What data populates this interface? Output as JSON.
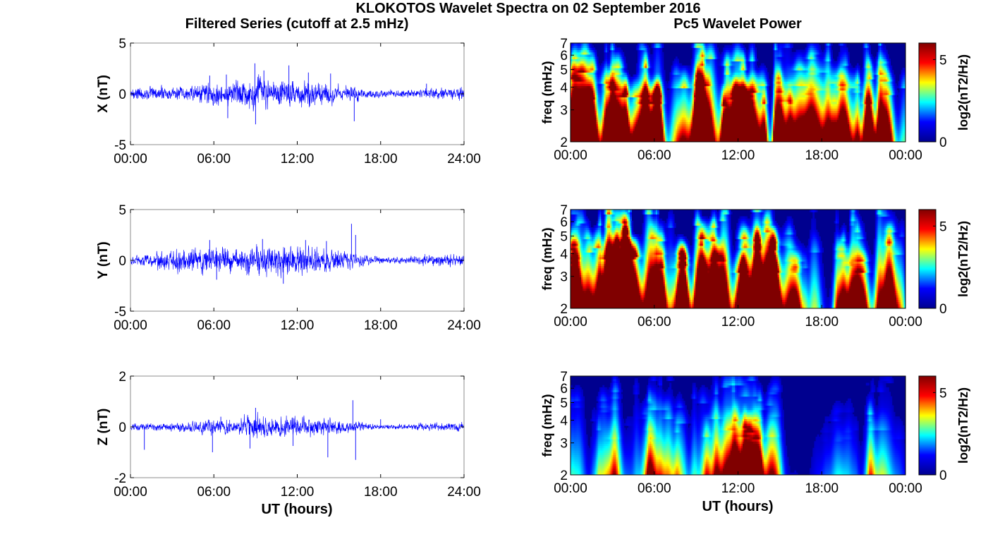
{
  "figure": {
    "title": "KLOKOTOS Wavelet Spectra on 02 September 2016",
    "left_title": "Filtered Series (cutoff at 2.5 mHz)",
    "right_title": "Pc5 Wavelet Power",
    "xlabel": "UT (hours)"
  },
  "colors": {
    "trace": "#0000ff",
    "colormap": [
      "#00008f",
      "#0000ff",
      "#00ffff",
      "#ffff00",
      "#ff0000",
      "#800000"
    ]
  },
  "chart_data": [
    {
      "type": "line",
      "component": "X",
      "ylabel": "X (nT)",
      "xlim": [
        0,
        24
      ],
      "ylim": [
        -5,
        5
      ],
      "xticks": [
        "00:00",
        "06:00",
        "12:00",
        "18:00",
        "24:00"
      ],
      "yticks": [
        "5",
        "0",
        "-5"
      ],
      "baseline_amplitude_nT": 0.45,
      "activity_envelope": [
        [
          0,
          0.6
        ],
        [
          2,
          0.7
        ],
        [
          4,
          0.7
        ],
        [
          6,
          1.1
        ],
        [
          7,
          1.0
        ],
        [
          8,
          1.4
        ],
        [
          9,
          1.8
        ],
        [
          10,
          1.5
        ],
        [
          11,
          1.5
        ],
        [
          12,
          1.5
        ],
        [
          13,
          1.3
        ],
        [
          14,
          1.1
        ],
        [
          15,
          0.9
        ],
        [
          16,
          0.8
        ],
        [
          17,
          0.5
        ],
        [
          18,
          0.4
        ],
        [
          19,
          0.35
        ],
        [
          20,
          0.4
        ],
        [
          21,
          0.5
        ],
        [
          22,
          0.5
        ],
        [
          23,
          0.55
        ],
        [
          24,
          0.7
        ]
      ],
      "spikes": [
        [
          5.7,
          1.8
        ],
        [
          6.9,
          1.9
        ],
        [
          7.0,
          -2.4
        ],
        [
          8.95,
          3.0
        ],
        [
          9.0,
          -3.0
        ],
        [
          9.6,
          2.3
        ],
        [
          11.4,
          2.8
        ],
        [
          12.8,
          2.1
        ],
        [
          14.4,
          2.0
        ],
        [
          16.1,
          -2.7
        ],
        [
          21.3,
          1.0
        ]
      ]
    },
    {
      "type": "heatmap",
      "component": "X",
      "ylabel": "freq (mHz)",
      "xlim": [
        0,
        24
      ],
      "ylim": [
        2,
        7
      ],
      "yscale": "log",
      "xticks": [
        "00:00",
        "06:00",
        "12:00",
        "18:00",
        "00:00"
      ],
      "yticks": [
        "2",
        "3",
        "4",
        "5",
        "6",
        "7"
      ],
      "colorbar_label": "log2(nT2/Hz)",
      "colorbar_ticks": [
        "0",
        "5"
      ],
      "clim": [
        0,
        6
      ],
      "intensity_profile": [
        [
          0,
          0.75
        ],
        [
          1,
          0.85
        ],
        [
          2,
          0.75
        ],
        [
          3,
          0.7
        ],
        [
          4,
          0.85
        ],
        [
          5,
          0.7
        ],
        [
          6,
          0.8
        ],
        [
          7,
          0.55
        ],
        [
          7.5,
          0.45
        ],
        [
          8,
          0.8
        ],
        [
          9,
          0.95
        ],
        [
          10,
          0.95
        ],
        [
          11,
          0.9
        ],
        [
          12,
          0.9
        ],
        [
          13,
          0.95
        ],
        [
          14,
          0.85
        ],
        [
          15,
          0.65
        ],
        [
          16,
          0.55
        ],
        [
          17,
          0.5
        ],
        [
          18,
          0.45
        ],
        [
          19,
          0.5
        ],
        [
          20,
          0.55
        ],
        [
          21,
          0.65
        ],
        [
          22,
          0.7
        ],
        [
          23,
          0.65
        ],
        [
          24,
          0.5
        ]
      ]
    },
    {
      "type": "line",
      "component": "Y",
      "ylabel": "Y (nT)",
      "xlim": [
        0,
        24
      ],
      "ylim": [
        -5,
        5
      ],
      "xticks": [
        "00:00",
        "06:00",
        "12:00",
        "18:00",
        "24:00"
      ],
      "yticks": [
        "5",
        "0",
        "-5"
      ],
      "baseline_amplitude_nT": 0.4,
      "activity_envelope": [
        [
          0,
          0.5
        ],
        [
          1.5,
          0.6
        ],
        [
          2,
          0.9
        ],
        [
          3,
          1.0
        ],
        [
          4,
          1.2
        ],
        [
          5,
          1.3
        ],
        [
          6,
          1.5
        ],
        [
          7,
          1.3
        ],
        [
          8,
          1.3
        ],
        [
          9,
          1.5
        ],
        [
          10,
          1.6
        ],
        [
          11,
          1.5
        ],
        [
          12,
          1.4
        ],
        [
          13,
          1.3
        ],
        [
          14,
          1.2
        ],
        [
          15,
          1.0
        ],
        [
          16,
          0.8
        ],
        [
          17,
          0.5
        ],
        [
          18,
          0.35
        ],
        [
          19,
          0.3
        ],
        [
          20,
          0.35
        ],
        [
          21,
          0.6
        ],
        [
          22,
          0.5
        ],
        [
          23,
          0.6
        ],
        [
          24,
          0.5
        ]
      ],
      "spikes": [
        [
          5.7,
          2.0
        ],
        [
          6.2,
          -1.9
        ],
        [
          9.5,
          2.1
        ],
        [
          11.0,
          -2.3
        ],
        [
          12.6,
          2.0
        ],
        [
          15.9,
          3.6
        ],
        [
          16.2,
          2.5
        ],
        [
          14.1,
          1.9
        ]
      ]
    },
    {
      "type": "heatmap",
      "component": "Y",
      "ylabel": "freq (mHz)",
      "xlim": [
        0,
        24
      ],
      "ylim": [
        2,
        7
      ],
      "yscale": "log",
      "xticks": [
        "00:00",
        "06:00",
        "12:00",
        "18:00",
        "00:00"
      ],
      "yticks": [
        "2",
        "3",
        "4",
        "5",
        "6",
        "7"
      ],
      "colorbar_label": "log2(nT2/Hz)",
      "colorbar_ticks": [
        "0",
        "5"
      ],
      "clim": [
        0,
        6
      ],
      "intensity_profile": [
        [
          0,
          0.65
        ],
        [
          1,
          0.8
        ],
        [
          2,
          0.85
        ],
        [
          3,
          0.85
        ],
        [
          4,
          0.9
        ],
        [
          5,
          0.95
        ],
        [
          6,
          0.9
        ],
        [
          7,
          0.7
        ],
        [
          7.5,
          0.4
        ],
        [
          8,
          0.85
        ],
        [
          9,
          1.0
        ],
        [
          10,
          1.0
        ],
        [
          11,
          0.95
        ],
        [
          12,
          0.95
        ],
        [
          13,
          0.9
        ],
        [
          14,
          0.85
        ],
        [
          15,
          0.55
        ],
        [
          16,
          0.45
        ],
        [
          17,
          0.45
        ],
        [
          18,
          0.45
        ],
        [
          19,
          0.4
        ],
        [
          20,
          0.5
        ],
        [
          21,
          0.7
        ],
        [
          22,
          0.7
        ],
        [
          23,
          0.6
        ],
        [
          24,
          0.4
        ]
      ]
    },
    {
      "type": "line",
      "component": "Z",
      "ylabel": "Z (nT)",
      "xlim": [
        0,
        24
      ],
      "ylim": [
        -2,
        2
      ],
      "xticks": [
        "00:00",
        "06:00",
        "12:00",
        "18:00",
        "24:00"
      ],
      "yticks": [
        "2",
        "0",
        "-2"
      ],
      "baseline_amplitude_nT": 0.12,
      "activity_envelope": [
        [
          0,
          0.15
        ],
        [
          2,
          0.15
        ],
        [
          4,
          0.2
        ],
        [
          6,
          0.35
        ],
        [
          7,
          0.3
        ],
        [
          8,
          0.4
        ],
        [
          9,
          0.5
        ],
        [
          10,
          0.45
        ],
        [
          11,
          0.4
        ],
        [
          12,
          0.45
        ],
        [
          13,
          0.4
        ],
        [
          14,
          0.35
        ],
        [
          15,
          0.3
        ],
        [
          16,
          0.25
        ],
        [
          17,
          0.15
        ],
        [
          18,
          0.1
        ],
        [
          20,
          0.1
        ],
        [
          21,
          0.15
        ],
        [
          22,
          0.15
        ],
        [
          23,
          0.15
        ],
        [
          24,
          0.2
        ]
      ],
      "spikes": [
        [
          1.0,
          -0.9
        ],
        [
          5.9,
          -1.0
        ],
        [
          6.5,
          0.4
        ],
        [
          8.6,
          -0.85
        ],
        [
          9.0,
          0.75
        ],
        [
          11.7,
          -0.75
        ],
        [
          14.2,
          -1.2
        ],
        [
          16.0,
          1.05
        ],
        [
          16.2,
          -1.3
        ],
        [
          18.0,
          0.3
        ]
      ]
    },
    {
      "type": "heatmap",
      "component": "Z",
      "ylabel": "freq (mHz)",
      "xlim": [
        0,
        24
      ],
      "ylim": [
        2,
        7
      ],
      "yscale": "log",
      "xticks": [
        "00:00",
        "06:00",
        "12:00",
        "18:00",
        "00:00"
      ],
      "yticks": [
        "2",
        "3",
        "4",
        "5",
        "6",
        "7"
      ],
      "colorbar_label": "log2(nT2/Hz)",
      "colorbar_ticks": [
        "0",
        "5"
      ],
      "clim": [
        0,
        6
      ],
      "intensity_profile": [
        [
          0,
          0.3
        ],
        [
          1,
          0.25
        ],
        [
          2,
          0.3
        ],
        [
          3,
          0.3
        ],
        [
          4,
          0.25
        ],
        [
          5,
          0.15
        ],
        [
          6,
          0.4
        ],
        [
          7,
          0.45
        ],
        [
          8,
          0.4
        ],
        [
          9,
          0.6
        ],
        [
          10,
          0.45
        ],
        [
          11,
          0.55
        ],
        [
          12,
          0.55
        ],
        [
          13,
          0.55
        ],
        [
          14,
          0.45
        ],
        [
          15,
          0.25
        ],
        [
          16,
          0.05
        ],
        [
          17,
          0.1
        ],
        [
          18,
          0.05
        ],
        [
          19,
          0.15
        ],
        [
          20,
          0.1
        ],
        [
          21,
          0.2
        ],
        [
          22,
          0.3
        ],
        [
          23,
          0.3
        ],
        [
          24,
          0.15
        ]
      ]
    }
  ]
}
